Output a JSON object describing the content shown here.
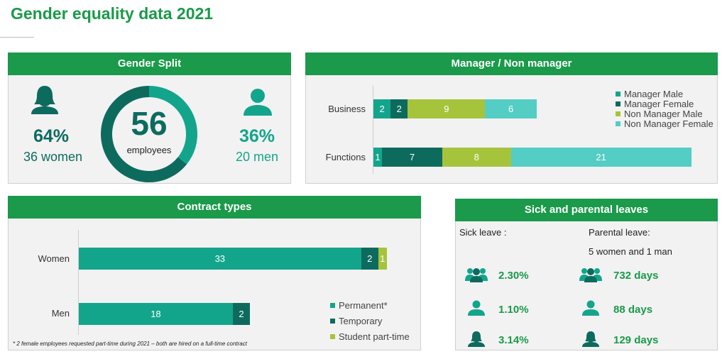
{
  "page_title": "Gender equality data 2021",
  "colors": {
    "brand_green": "#1a9a4a",
    "manager_male": "#13a58c",
    "manager_female": "#0d6b5e",
    "non_manager_male": "#a6c43b",
    "non_manager_female": "#54cdc4",
    "donut_women": "#0d6b5e",
    "donut_men": "#13a58c"
  },
  "gender_split": {
    "header": "Gender Split",
    "total": "56",
    "total_label": "employees",
    "women_pct": "64%",
    "women_count": "36 women",
    "men_pct": "36%",
    "men_count": "20 men",
    "women_icon": "female-person-icon",
    "men_icon": "male-person-icon"
  },
  "manager": {
    "header": "Manager / Non manager"
  },
  "contract": {
    "header": "Contract types",
    "footnote": "* 2 female employees requested part-time during 2021 – both are hired on a full-time contract"
  },
  "leaves": {
    "header": "Sick and parental leaves",
    "sick_label": "Sick leave :",
    "parental_label": "Parental leave:",
    "parental_sub": "5 women and 1 man",
    "rows": [
      {
        "sick": "2.30%",
        "parental": "732 days",
        "icon": "group-icon"
      },
      {
        "sick": "1.10%",
        "parental": "88 days",
        "icon": "male-person-icon"
      },
      {
        "sick": "3.14%",
        "parental": "129 days",
        "icon": "female-person-icon"
      }
    ]
  },
  "chart_data": [
    {
      "type": "pie",
      "variant": "donut",
      "title": "Gender Split",
      "labels": [
        "Women",
        "Men"
      ],
      "values": [
        36,
        20
      ],
      "center_text": "56 employees"
    },
    {
      "type": "bar",
      "orientation": "horizontal",
      "stacked": true,
      "title": "Manager / Non manager",
      "categories": [
        "Business",
        "Functions"
      ],
      "series": [
        {
          "name": "Manager Male",
          "values": [
            2,
            1
          ]
        },
        {
          "name": "Manager Female",
          "values": [
            2,
            7
          ]
        },
        {
          "name": "Non Manager Male",
          "values": [
            9,
            8
          ]
        },
        {
          "name": "Non Manager Female",
          "values": [
            6,
            21
          ]
        }
      ],
      "legend": "right"
    },
    {
      "type": "bar",
      "orientation": "horizontal",
      "stacked": true,
      "title": "Contract types",
      "categories": [
        "Women",
        "Men"
      ],
      "series": [
        {
          "name": "Permanent*",
          "values": [
            33,
            18
          ]
        },
        {
          "name": "Temporary",
          "values": [
            2,
            2
          ]
        },
        {
          "name": "Student part-time",
          "values": [
            1,
            0
          ]
        }
      ],
      "legend": "bottom-right"
    }
  ]
}
